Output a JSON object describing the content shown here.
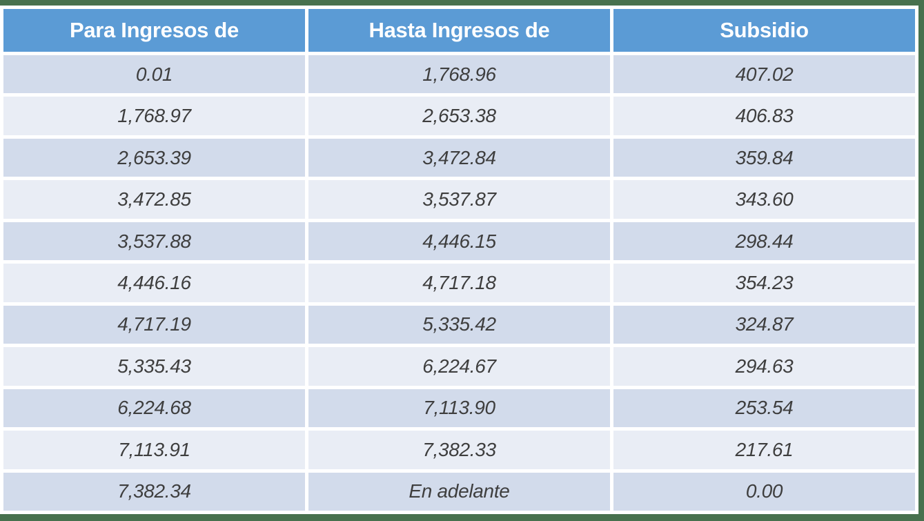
{
  "chart_data": {
    "type": "table",
    "columns": [
      "Para Ingresos de",
      "Hasta Ingresos de",
      "Subsidio"
    ],
    "rows": [
      [
        "0.01",
        "1,768.96",
        "407.02"
      ],
      [
        "1,768.97",
        "2,653.38",
        "406.83"
      ],
      [
        "2,653.39",
        "3,472.84",
        "359.84"
      ],
      [
        "3,472.85",
        "3,537.87",
        "343.60"
      ],
      [
        "3,537.88",
        "4,446.15",
        "298.44"
      ],
      [
        "4,446.16",
        "4,717.18",
        "354.23"
      ],
      [
        "4,717.19",
        "5,335.42",
        "324.87"
      ],
      [
        "5,335.43",
        "6,224.67",
        "294.63"
      ],
      [
        "6,224.68",
        "7,113.90",
        "253.54"
      ],
      [
        "7,113.91",
        "7,382.33",
        "217.61"
      ],
      [
        "7,382.34",
        "En adelante",
        "0.00"
      ]
    ],
    "layout": {
      "grid": "white 5px gaps between cells",
      "row_striping": "odd rows darker, even rows lighter"
    }
  },
  "colors": {
    "header_bg": "#5B9BD5",
    "header_text": "#FFFFFF",
    "row_odd_bg": "#D2DBEB",
    "row_even_bg": "#E9EDF5",
    "cell_text": "#3E3E3E",
    "frame_border": "#47714E",
    "gap": "#FFFFFF"
  }
}
